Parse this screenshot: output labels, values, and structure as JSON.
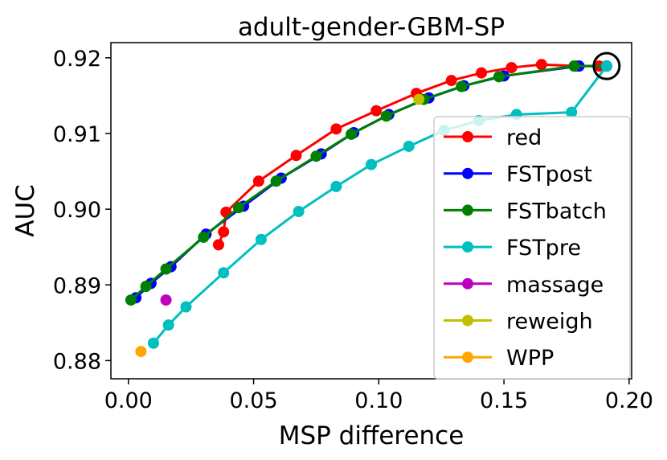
{
  "chart_data": {
    "type": "line",
    "title": "adult-gender-GBM-SP",
    "xlabel": "MSP difference",
    "ylabel": "AUC",
    "xlim": [
      -0.007,
      0.201
    ],
    "ylim": [
      0.8776,
      0.922
    ],
    "x_ticks": [
      0.0,
      0.05,
      0.1,
      0.15,
      0.2
    ],
    "x_tick_labels": [
      "0.00",
      "0.05",
      "0.10",
      "0.15",
      "0.20"
    ],
    "y_ticks": [
      0.88,
      0.89,
      0.9,
      0.91,
      0.92
    ],
    "y_tick_labels": [
      "0.88",
      "0.89",
      "0.90",
      "0.91",
      "0.92"
    ],
    "grid": false,
    "legend_position": "lower-right",
    "highlight": {
      "label": "circled point",
      "x": 0.191,
      "y": 0.9189
    },
    "series": [
      {
        "name": "red",
        "color": "#ff0000",
        "line": true,
        "x": [
          0.036,
          0.038,
          0.039,
          0.052,
          0.067,
          0.083,
          0.099,
          0.115,
          0.129,
          0.141,
          0.153,
          0.165,
          0.179,
          0.188,
          0.191
        ],
        "y": [
          0.8953,
          0.897,
          0.8996,
          0.9037,
          0.9071,
          0.9106,
          0.913,
          0.9153,
          0.917,
          0.918,
          0.9187,
          0.9191,
          0.9189,
          0.9189,
          0.9189
        ]
      },
      {
        "name": "FSTpost",
        "color": "#0000ff",
        "line": true,
        "x": [
          0.003,
          0.009,
          0.017,
          0.031,
          0.046,
          0.061,
          0.077,
          0.09,
          0.104,
          0.12,
          0.134,
          0.15,
          0.18,
          0.191
        ],
        "y": [
          0.8883,
          0.8902,
          0.8924,
          0.8967,
          0.9004,
          0.9041,
          0.9073,
          0.9101,
          0.9125,
          0.9147,
          0.9163,
          0.9176,
          0.9189,
          0.9189
        ]
      },
      {
        "name": "FSTbatch",
        "color": "#008000",
        "line": true,
        "x": [
          0.001,
          0.007,
          0.015,
          0.03,
          0.044,
          0.059,
          0.075,
          0.089,
          0.103,
          0.118,
          0.133,
          0.148,
          0.178,
          0.191
        ],
        "y": [
          0.888,
          0.8898,
          0.8921,
          0.8963,
          0.9002,
          0.9037,
          0.907,
          0.9099,
          0.9123,
          0.9145,
          0.9162,
          0.9175,
          0.9189,
          0.9189
        ]
      },
      {
        "name": "FSTpre",
        "color": "#00bfbf",
        "line": true,
        "x": [
          0.01,
          0.016,
          0.023,
          0.038,
          0.053,
          0.068,
          0.083,
          0.097,
          0.112,
          0.126,
          0.14,
          0.155,
          0.177,
          0.191
        ],
        "y": [
          0.8823,
          0.8847,
          0.8871,
          0.8916,
          0.896,
          0.8997,
          0.903,
          0.9059,
          0.9083,
          0.9104,
          0.9117,
          0.9125,
          0.9128,
          0.9189
        ]
      },
      {
        "name": "massage",
        "color": "#bf00bf",
        "line": false,
        "x": [
          0.015
        ],
        "y": [
          0.888
        ]
      },
      {
        "name": "reweigh",
        "color": "#bfbf00",
        "line": false,
        "x": [
          0.116
        ],
        "y": [
          0.9145
        ]
      },
      {
        "name": "WPP",
        "color": "#ffa500",
        "line": false,
        "x": [
          0.005
        ],
        "y": [
          0.8812
        ]
      }
    ]
  }
}
